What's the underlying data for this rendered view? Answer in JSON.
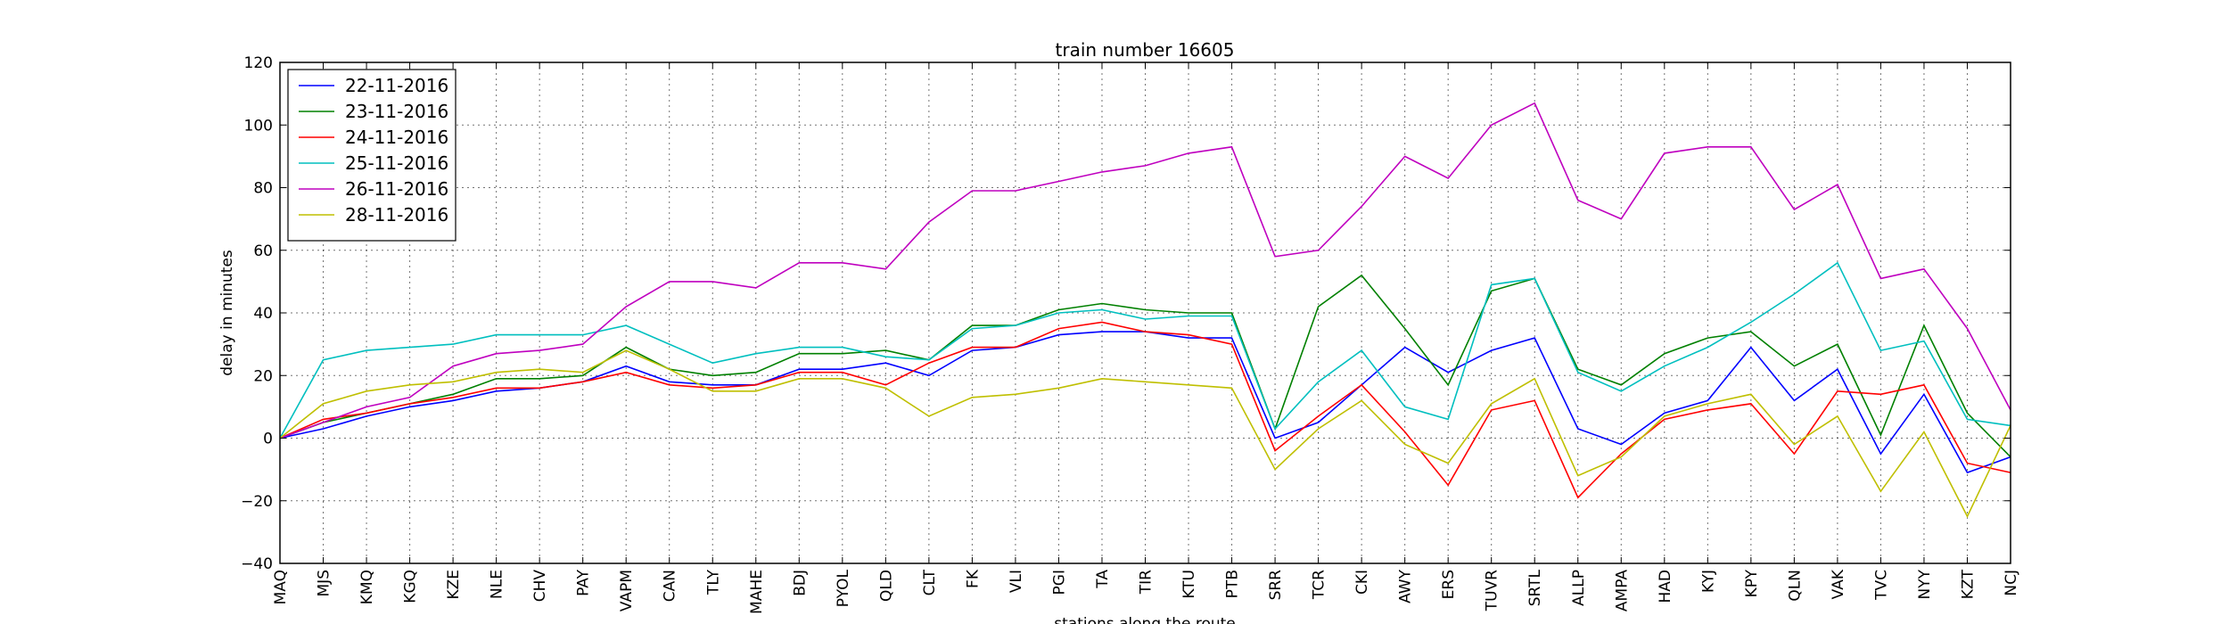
{
  "chart_data": {
    "type": "line",
    "title": "train number 16605",
    "xlabel": "stations along the route",
    "ylabel": "delay in minutes",
    "ylim": [
      -40,
      120
    ],
    "yticks": [
      -40,
      -20,
      0,
      20,
      40,
      60,
      80,
      100,
      120
    ],
    "grid": true,
    "legend_position": "top-left",
    "categories": [
      "MAQ",
      "MJS",
      "KMQ",
      "KGQ",
      "KZE",
      "NLE",
      "CHV",
      "PAY",
      "VAPM",
      "CAN",
      "TLY",
      "MAHE",
      "BDJ",
      "PYOL",
      "QLD",
      "CLT",
      "FK",
      "VLI",
      "PGI",
      "TA",
      "TIR",
      "KTU",
      "PTB",
      "SRR",
      "TCR",
      "CKI",
      "AWY",
      "ERS",
      "TUVR",
      "SRTL",
      "ALLP",
      "AMPA",
      "HAD",
      "KYJ",
      "KPY",
      "QLN",
      "VAK",
      "TVC",
      "NYY",
      "KZT",
      "NCJ"
    ],
    "series": [
      {
        "name": "22-11-2016",
        "color": "#0000ff",
        "values": [
          0,
          3,
          7,
          10,
          12,
          15,
          16,
          18,
          23,
          18,
          17,
          17,
          22,
          22,
          24,
          20,
          28,
          29,
          33,
          34,
          34,
          32,
          32,
          0,
          5,
          17,
          29,
          21,
          28,
          32,
          3,
          -2,
          8,
          12,
          29,
          12,
          22,
          -5,
          14,
          -11,
          -6
        ]
      },
      {
        "name": "23-11-2016",
        "color": "#008000",
        "values": [
          0,
          5,
          8,
          11,
          14,
          19,
          19,
          20,
          29,
          22,
          20,
          21,
          27,
          27,
          28,
          25,
          36,
          36,
          41,
          43,
          41,
          40,
          40,
          3,
          42,
          52,
          35,
          17,
          47,
          51,
          22,
          17,
          27,
          32,
          34,
          23,
          30,
          1,
          36,
          8,
          -6
        ]
      },
      {
        "name": "24-11-2016",
        "color": "#ff0000",
        "values": [
          0,
          6,
          8,
          11,
          13,
          16,
          16,
          18,
          21,
          17,
          16,
          17,
          21,
          21,
          17,
          24,
          29,
          29,
          35,
          37,
          34,
          33,
          30,
          -4,
          7,
          17,
          2,
          -15,
          9,
          12,
          -19,
          -5,
          6,
          9,
          11,
          -5,
          15,
          14,
          17,
          -8,
          -11
        ]
      },
      {
        "name": "25-11-2016",
        "color": "#00bfbf",
        "values": [
          0,
          25,
          28,
          29,
          30,
          33,
          33,
          33,
          36,
          30,
          24,
          27,
          29,
          29,
          26,
          25,
          35,
          36,
          40,
          41,
          38,
          39,
          39,
          3,
          18,
          28,
          10,
          6,
          49,
          51,
          21,
          15,
          23,
          29,
          37,
          46,
          56,
          28,
          31,
          6,
          4
        ]
      },
      {
        "name": "26-11-2016",
        "color": "#bf00bf",
        "values": [
          0,
          5,
          10,
          13,
          23,
          27,
          28,
          30,
          42,
          50,
          50,
          48,
          56,
          56,
          54,
          69,
          79,
          79,
          82,
          85,
          87,
          91,
          93,
          58,
          60,
          74,
          90,
          83,
          100,
          107,
          76,
          70,
          91,
          93,
          93,
          73,
          81,
          51,
          54,
          35,
          9
        ]
      },
      {
        "name": "28-11-2016",
        "color": "#bfbf00",
        "values": [
          0,
          11,
          15,
          17,
          18,
          21,
          22,
          21,
          28,
          22,
          15,
          15,
          19,
          19,
          16,
          7,
          13,
          14,
          16,
          19,
          18,
          17,
          16,
          -10,
          3,
          12,
          -2,
          -8,
          11,
          19,
          -12,
          -6,
          7,
          11,
          14,
          -2,
          7,
          -17,
          2,
          -25,
          4
        ]
      }
    ]
  }
}
